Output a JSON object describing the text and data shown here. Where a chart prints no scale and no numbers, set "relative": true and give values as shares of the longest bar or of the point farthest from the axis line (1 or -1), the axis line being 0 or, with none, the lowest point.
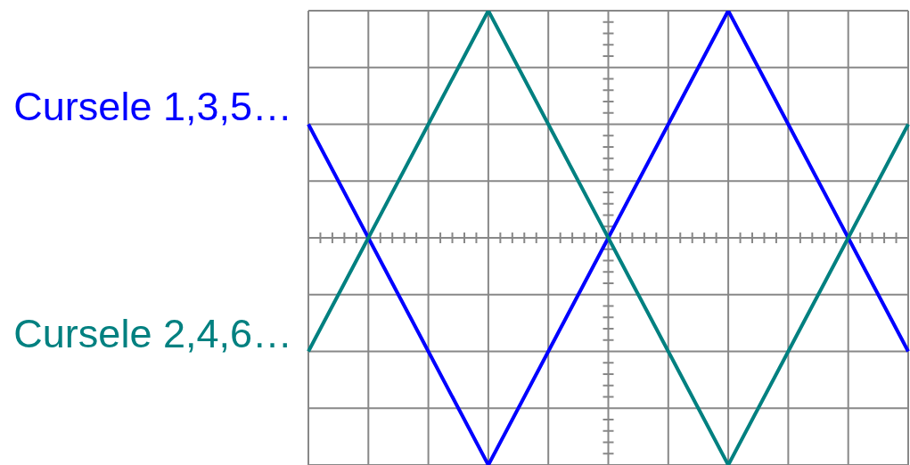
{
  "chart_data": {
    "type": "line",
    "relative": true,
    "categories": [
      null,
      null,
      null,
      null,
      null,
      null,
      null,
      null,
      null,
      null,
      null
    ],
    "series": [
      {
        "name": "Cursele 1,3,5…",
        "color": "#0000ff",
        "values": [
          0.5,
          0,
          -0.5,
          -1,
          -0.5,
          0,
          0.5,
          1,
          0.5,
          0,
          -0.5
        ]
      },
      {
        "name": "Cursele 2,4,6…",
        "color": "#008080",
        "values": [
          -0.5,
          0,
          0.5,
          1,
          0.5,
          0,
          -0.5,
          -1,
          -0.5,
          0,
          0.5
        ]
      }
    ],
    "grid": true,
    "marker": "none",
    "line_style": "solid"
  }
}
